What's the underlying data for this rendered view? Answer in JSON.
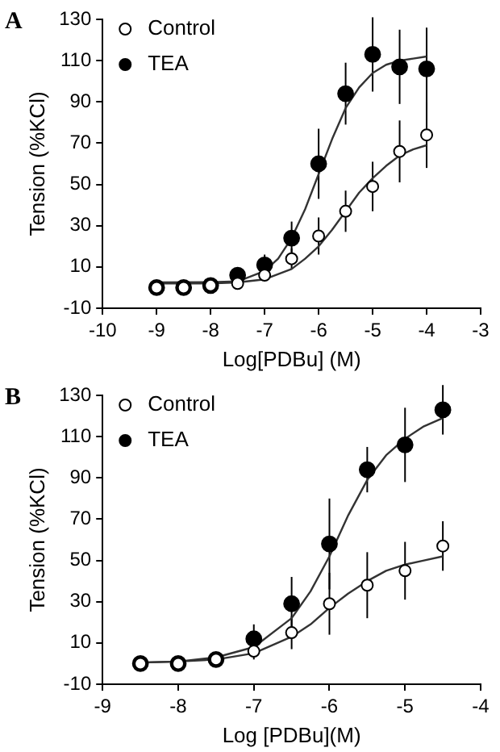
{
  "chart_data": [
    {
      "type": "scatter",
      "title": "A",
      "xlabel": "Log[PDBu] (M)",
      "ylabel": "Tension (%KCl)",
      "xlim": [
        -10,
        -3
      ],
      "xticks": [
        -10,
        -9,
        -8,
        -7,
        -6,
        -5,
        -4,
        -3
      ],
      "ylim": [
        -10,
        130
      ],
      "yticks": [
        -10,
        10,
        30,
        50,
        70,
        90,
        110,
        130
      ],
      "grid": false,
      "legend": "top left",
      "marker": "circle",
      "line_style": "solid",
      "x": [
        -9,
        -8.5,
        -8,
        -7.5,
        -7,
        -6.5,
        -6,
        -5.5,
        -5,
        -4.5,
        -4
      ],
      "series": [
        {
          "type": "line",
          "marker": "none",
          "color": "#333333",
          "x": [
            -9,
            -8,
            -7.5,
            -7,
            -6.75,
            -6.5,
            -6.25,
            -6,
            -5.75,
            -5.5,
            -5.25,
            -5,
            -4.75,
            -4.5,
            -4.25,
            -4
          ],
          "values": [
            2.5,
            2.6,
            3,
            8,
            14,
            24,
            38,
            55,
            72,
            87,
            97,
            104,
            108,
            110,
            111,
            112
          ]
        },
        {
          "type": "line",
          "marker": "none",
          "color": "#333333",
          "x": [
            -9,
            -8,
            -7.5,
            -7,
            -6.5,
            -6.25,
            -6,
            -5.75,
            -5.5,
            -5.25,
            -5,
            -4.75,
            -4.5,
            -4.25,
            -4
          ],
          "values": [
            2,
            2,
            2.5,
            4,
            9,
            14,
            20,
            28,
            37,
            46,
            53,
            59,
            64,
            67,
            69
          ]
        },
        {
          "name": "Control",
          "color": "#ffffff",
          "values": [
            0,
            0,
            1,
            2,
            6,
            14,
            25,
            37,
            49,
            66,
            74
          ],
          "errors": [
            null,
            null,
            null,
            2,
            3,
            5,
            9,
            10,
            12,
            15,
            16
          ]
        },
        {
          "name": "TEA",
          "color": "#000000",
          "values": [
            0,
            0,
            1,
            6,
            11,
            24,
            60,
            94,
            113,
            107,
            106
          ],
          "errors": [
            null,
            null,
            null,
            2,
            5,
            8,
            17,
            15,
            18,
            18,
            20
          ]
        }
      ]
    },
    {
      "type": "scatter",
      "title": "B",
      "xlabel": "Log [PDBu](M)",
      "ylabel": "Tension (%KCl)",
      "xlim": [
        -9,
        -4
      ],
      "xticks": [
        -9,
        -8,
        -7,
        -6,
        -5,
        -4
      ],
      "ylim": [
        -10,
        130
      ],
      "yticks": [
        -10,
        10,
        30,
        50,
        70,
        90,
        110,
        130
      ],
      "grid": false,
      "legend": "top left",
      "marker": "circle",
      "line_style": "solid",
      "x": [
        -8.5,
        -8,
        -7.5,
        -7,
        -6.5,
        -6,
        -5.5,
        -5,
        -4.5
      ],
      "series": [
        {
          "type": "line",
          "marker": "none",
          "color": "#333333",
          "x": [
            -8.5,
            -8,
            -7.5,
            -7,
            -6.5,
            -6.25,
            -6,
            -5.75,
            -5.5,
            -5.25,
            -5,
            -4.75,
            -4.5
          ],
          "values": [
            0.5,
            1,
            3,
            8,
            22,
            35,
            52,
            72,
            89,
            101,
            109,
            115,
            119
          ]
        },
        {
          "type": "line",
          "marker": "none",
          "color": "#333333",
          "x": [
            -8.5,
            -8,
            -7.5,
            -7,
            -6.5,
            -6.25,
            -6,
            -5.75,
            -5.5,
            -5.25,
            -5,
            -4.75,
            -4.5
          ],
          "values": [
            0.5,
            1,
            2,
            5,
            13,
            19,
            27,
            34,
            40,
            45,
            48,
            50,
            52
          ]
        },
        {
          "name": "Control",
          "color": "#ffffff",
          "values": [
            0,
            0,
            2,
            6,
            15,
            29,
            38,
            45,
            57
          ],
          "errors": [
            null,
            null,
            null,
            4,
            8,
            15,
            16,
            14,
            12
          ]
        },
        {
          "name": "TEA",
          "color": "#000000",
          "values": [
            0,
            0,
            2,
            12,
            29,
            58,
            94,
            106,
            123
          ],
          "errors": [
            null,
            null,
            null,
            7,
            13,
            22,
            11,
            18,
            12
          ]
        }
      ]
    }
  ]
}
